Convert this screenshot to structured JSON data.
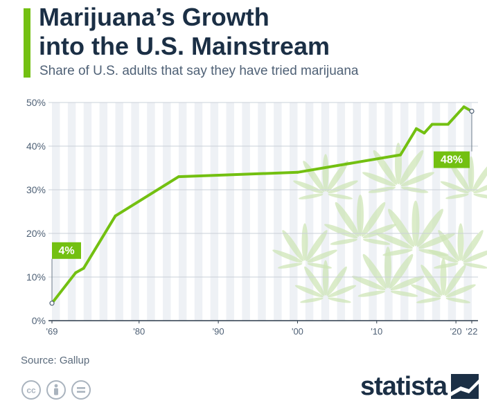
{
  "header": {
    "title_line1": "Marijuana’s Growth",
    "title_line2": "into the U.S. Mainstream",
    "subtitle": "Share of U.S. adults that say they have tried marijuana"
  },
  "footer": {
    "source": "Source: Gallup",
    "brand": "statista",
    "license_icons": [
      "cc-icon",
      "attribution-icon",
      "no-derivatives-icon"
    ]
  },
  "colors": {
    "accent": "#73c011",
    "title": "#1b2f45",
    "grid_band": "#eef1f5",
    "plant": "#cfe6b8"
  },
  "chart_data": {
    "type": "line",
    "title": "Marijuana’s Growth into the U.S. Mainstream",
    "subtitle": "Share of U.S. adults that say they have tried marijuana",
    "xlabel": "",
    "ylabel": "",
    "xlim": [
      1969,
      2023
    ],
    "ylim": [
      0,
      50
    ],
    "grid": true,
    "yticks": [
      0,
      10,
      20,
      30,
      40,
      50
    ],
    "ytick_labels": [
      "0%",
      "10%",
      "20%",
      "30%",
      "40%",
      "50%"
    ],
    "xticks": [
      1969,
      1980,
      1990,
      2000,
      2010,
      2020,
      2022
    ],
    "xtick_labels": [
      "'69",
      "'80",
      "'90",
      "'00",
      "'10",
      "'20",
      "'22"
    ],
    "series": [
      {
        "x": [
          1969,
          1972,
          1973,
          1977,
          1985,
          2000,
          2013,
          2015,
          2016,
          2017,
          2019,
          2021,
          2022
        ],
        "y": [
          4,
          11,
          12,
          24,
          33,
          34,
          38,
          44,
          43,
          45,
          45,
          49,
          48
        ]
      }
    ],
    "annotations": [
      {
        "x": 1969,
        "y": 4,
        "text": "4%"
      },
      {
        "x": 2022,
        "y": 48,
        "text": "48%"
      }
    ]
  }
}
